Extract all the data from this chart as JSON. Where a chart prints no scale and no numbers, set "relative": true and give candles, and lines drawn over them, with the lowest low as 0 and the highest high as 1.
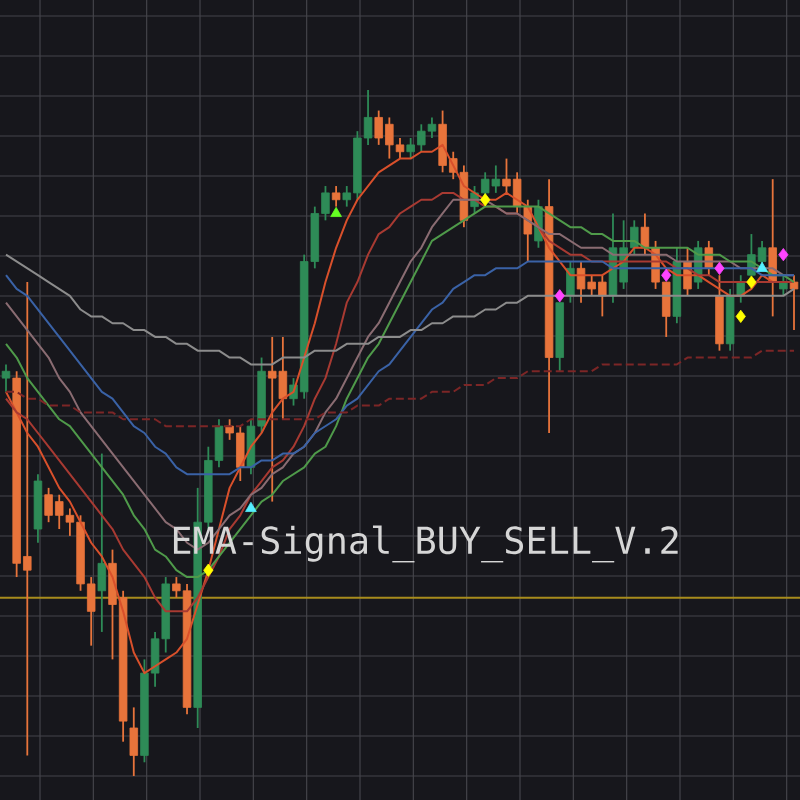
{
  "chart_data": {
    "type": "candlestick",
    "relative": true,
    "grid": true,
    "categories": [
      null,
      null,
      null,
      null,
      null,
      null,
      null,
      null,
      null,
      null,
      null,
      null,
      null,
      null,
      null,
      null,
      null,
      null,
      null,
      null,
      null,
      null,
      null,
      null,
      null,
      null,
      null,
      null,
      null,
      null,
      null,
      null,
      null,
      null,
      null,
      null,
      null,
      null,
      null,
      null,
      null,
      null,
      null,
      null,
      null,
      null,
      null,
      null,
      null,
      null,
      null,
      null,
      null,
      null,
      null,
      null,
      null,
      null,
      null,
      null,
      null,
      null,
      null,
      null,
      null,
      null,
      null,
      null,
      null,
      null,
      null,
      null,
      null,
      null,
      null
    ],
    "ohlc": [
      [
        0.58,
        0.6,
        0.56,
        0.59
      ],
      [
        0.58,
        0.59,
        0.29,
        0.31
      ],
      [
        0.32,
        0.72,
        0.03,
        0.3
      ],
      [
        0.36,
        0.44,
        0.34,
        0.43
      ],
      [
        0.41,
        0.42,
        0.37,
        0.38
      ],
      [
        0.4,
        0.41,
        0.36,
        0.38
      ],
      [
        0.38,
        0.39,
        0.35,
        0.37
      ],
      [
        0.37,
        0.38,
        0.27,
        0.28
      ],
      [
        0.28,
        0.29,
        0.19,
        0.24
      ],
      [
        0.27,
        0.47,
        0.21,
        0.31
      ],
      [
        0.31,
        0.33,
        0.17,
        0.25
      ],
      [
        0.26,
        0.27,
        0.05,
        0.08
      ],
      [
        0.07,
        0.1,
        0,
        0.03
      ],
      [
        0.03,
        0.17,
        0.02,
        0.15
      ],
      [
        0.15,
        0.21,
        0.13,
        0.2
      ],
      [
        0.2,
        0.29,
        0.18,
        0.28
      ],
      [
        0.28,
        0.29,
        0.26,
        0.27
      ],
      [
        0.27,
        0.28,
        0.09,
        0.1
      ],
      [
        0.1,
        0.42,
        0.07,
        0.37
      ],
      [
        0.37,
        0.48,
        0.36,
        0.46
      ],
      [
        0.46,
        0.52,
        0.45,
        0.51
      ],
      [
        0.51,
        0.52,
        0.49,
        0.5
      ],
      [
        0.5,
        0.51,
        0.43,
        0.45
      ],
      [
        0.45,
        0.52,
        0.44,
        0.51
      ],
      [
        0.51,
        0.61,
        0.5,
        0.59
      ],
      [
        0.59,
        0.64,
        0.4,
        0.58
      ],
      [
        0.59,
        0.64,
        0.52,
        0.55
      ],
      [
        0.55,
        0.58,
        0.54,
        0.57
      ],
      [
        0.56,
        0.76,
        0.55,
        0.75
      ],
      [
        0.75,
        0.83,
        0.74,
        0.82
      ],
      [
        0.82,
        0.86,
        0.81,
        0.85
      ],
      [
        0.85,
        0.86,
        0.83,
        0.84
      ],
      [
        0.84,
        0.86,
        0.83,
        0.85
      ],
      [
        0.85,
        0.94,
        0.84,
        0.93
      ],
      [
        0.93,
        1,
        0.92,
        0.96
      ],
      [
        0.96,
        0.97,
        0.92,
        0.93
      ],
      [
        0.95,
        0.96,
        0.9,
        0.92
      ],
      [
        0.92,
        0.93,
        0.9,
        0.91
      ],
      [
        0.91,
        0.93,
        0.9,
        0.92
      ],
      [
        0.92,
        0.95,
        0.91,
        0.94
      ],
      [
        0.94,
        0.96,
        0.93,
        0.95
      ],
      [
        0.95,
        0.97,
        0.88,
        0.89
      ],
      [
        0.9,
        0.91,
        0.87,
        0.88
      ],
      [
        0.88,
        0.89,
        0.8,
        0.81
      ],
      [
        0.83,
        0.86,
        0.82,
        0.85
      ],
      [
        0.85,
        0.88,
        0.84,
        0.87
      ],
      [
        0.86,
        0.89,
        0.85,
        0.87
      ],
      [
        0.87,
        0.9,
        0.85,
        0.86
      ],
      [
        0.87,
        0.88,
        0.82,
        0.83
      ],
      [
        0.83,
        0.84,
        0.75,
        0.79
      ],
      [
        0.78,
        0.84,
        0.77,
        0.83
      ],
      [
        0.83,
        0.87,
        0.5,
        0.61
      ],
      [
        0.61,
        0.69,
        0.59,
        0.69
      ],
      [
        0.7,
        0.75,
        0.69,
        0.74
      ],
      [
        0.74,
        0.75,
        0.69,
        0.71
      ],
      [
        0.72,
        0.73,
        0.7,
        0.71
      ],
      [
        0.72,
        0.73,
        0.67,
        0.7
      ],
      [
        0.7,
        0.82,
        0.69,
        0.77
      ],
      [
        0.72,
        0.81,
        0.71,
        0.77
      ],
      [
        0.77,
        0.81,
        0.76,
        0.8
      ],
      [
        0.8,
        0.82,
        0.76,
        0.77
      ],
      [
        0.77,
        0.78,
        0.71,
        0.72
      ],
      [
        0.72,
        0.72,
        0.64,
        0.67
      ],
      [
        0.67,
        0.77,
        0.66,
        0.75
      ],
      [
        0.75,
        0.77,
        0.7,
        0.71
      ],
      [
        0.72,
        0.78,
        0.71,
        0.77
      ],
      [
        0.77,
        0.78,
        0.73,
        0.74
      ],
      [
        0.7,
        0.73,
        0.62,
        0.63
      ],
      [
        0.63,
        0.71,
        0.62,
        0.7
      ],
      [
        0.7,
        0.73,
        0.69,
        0.72
      ],
      [
        0.73,
        0.79,
        0.73,
        0.76
      ],
      [
        0.75,
        0.78,
        0.74,
        0.77
      ],
      [
        0.77,
        0.87,
        0.67,
        0.72
      ],
      [
        0.71,
        0.73,
        0.7,
        0.72
      ],
      [
        0.72,
        0.73,
        0.65,
        0.71
      ]
    ],
    "colors": [
      "#2e8b57",
      "#e8743b",
      "#e8743b",
      "#2e8b57",
      "#e8743b",
      "#e8743b",
      "#e8743b",
      "#e8743b",
      "#e8743b",
      "#2e8b57",
      "#e8743b",
      "#e8743b",
      "#e8743b",
      "#2e8b57",
      "#2e8b57",
      "#2e8b57",
      "#e8743b",
      "#e8743b",
      "#2e8b57",
      "#2e8b57",
      "#2e8b57",
      "#e8743b",
      "#e8743b",
      "#2e8b57",
      "#2e8b57",
      "#e8743b",
      "#e8743b",
      "#2e8b57",
      "#2e8b57",
      "#2e8b57",
      "#2e8b57",
      "#e8743b",
      "#2e8b57",
      "#2e8b57",
      "#2e8b57",
      "#e8743b",
      "#e8743b",
      "#e8743b",
      "#2e8b57",
      "#2e8b57",
      "#2e8b57",
      "#e8743b",
      "#e8743b",
      "#e8743b",
      "#2e8b57",
      "#2e8b57",
      "#2e8b57",
      "#e8743b",
      "#e8743b",
      "#e8743b",
      "#2e8b57",
      "#e8743b",
      "#2e8b57",
      "#2e8b57",
      "#e8743b",
      "#e8743b",
      "#e8743b",
      "#2e8b57",
      "#2e8b57",
      "#2e8b57",
      "#e8743b",
      "#e8743b",
      "#e8743b",
      "#2e8b57",
      "#e8743b",
      "#2e8b57",
      "#e8743b",
      "#e8743b",
      "#2e8b57",
      "#2e8b57",
      "#2e8b57",
      "#2e8b57",
      "#e8743b",
      "#2e8b57",
      "#e8743b"
    ],
    "series": [
      {
        "type": "line",
        "color": "#d9502b",
        "values": [
          0.56,
          0.53,
          0.5,
          0.48,
          0.45,
          0.42,
          0.4,
          0.37,
          0.34,
          0.32,
          0.29,
          0.24,
          0.18,
          0.15,
          0.16,
          0.17,
          0.18,
          0.2,
          0.25,
          0.3,
          0.36,
          0.42,
          0.45,
          0.48,
          0.5,
          0.53,
          0.55,
          0.56,
          0.61,
          0.66,
          0.72,
          0.77,
          0.81,
          0.84,
          0.86,
          0.88,
          0.89,
          0.9,
          0.9,
          0.91,
          0.91,
          0.92,
          0.89,
          0.86,
          0.85,
          0.84,
          0.84,
          0.85,
          0.84,
          0.83,
          0.8,
          0.77,
          0.75,
          0.73,
          0.73,
          0.73,
          0.73,
          0.74,
          0.75,
          0.77,
          0.77,
          0.76,
          0.74,
          0.73,
          0.73,
          0.73,
          0.72,
          0.71,
          0.7,
          0.7,
          0.71,
          0.73,
          0.72,
          0.72,
          0.72
        ]
      },
      {
        "type": "line",
        "color": "#a83a32",
        "values": [
          0.55,
          0.53,
          0.52,
          0.5,
          0.48,
          0.46,
          0.44,
          0.42,
          0.4,
          0.38,
          0.36,
          0.33,
          0.31,
          0.29,
          0.26,
          0.24,
          0.24,
          0.24,
          0.26,
          0.29,
          0.32,
          0.36,
          0.38,
          0.41,
          0.43,
          0.45,
          0.46,
          0.48,
          0.51,
          0.55,
          0.58,
          0.63,
          0.69,
          0.72,
          0.76,
          0.79,
          0.8,
          0.82,
          0.83,
          0.84,
          0.84,
          0.85,
          0.85,
          0.84,
          0.84,
          0.83,
          0.83,
          0.82,
          0.82,
          0.81,
          0.8,
          0.78,
          0.77,
          0.76,
          0.76,
          0.75,
          0.75,
          0.75,
          0.75,
          0.75,
          0.75,
          0.75,
          0.75,
          0.74,
          0.74,
          0.73,
          0.73,
          0.72,
          0.72,
          0.72,
          0.72,
          0.72,
          0.72,
          0.72,
          0.72
        ]
      },
      {
        "type": "line",
        "color": "#8a6c72",
        "values": [
          0.69,
          0.67,
          0.65,
          0.63,
          0.61,
          0.58,
          0.56,
          0.53,
          0.51,
          0.49,
          0.47,
          0.45,
          0.43,
          0.41,
          0.39,
          0.37,
          0.36,
          0.34,
          0.33,
          0.34,
          0.36,
          0.38,
          0.39,
          0.41,
          0.42,
          0.44,
          0.45,
          0.47,
          0.48,
          0.5,
          0.53,
          0.55,
          0.58,
          0.61,
          0.64,
          0.66,
          0.69,
          0.72,
          0.75,
          0.77,
          0.8,
          0.82,
          0.84,
          0.84,
          0.84,
          0.84,
          0.83,
          0.82,
          0.82,
          0.81,
          0.8,
          0.79,
          0.79,
          0.78,
          0.77,
          0.77,
          0.77,
          0.76,
          0.76,
          0.76,
          0.76,
          0.76,
          0.76,
          0.75,
          0.75,
          0.75,
          0.75,
          0.75,
          0.75,
          0.74,
          0.74,
          0.74,
          0.74,
          0.73,
          0.73
        ]
      },
      {
        "type": "line",
        "color": "#4f9a4a",
        "values": [
          0.63,
          0.61,
          0.58,
          0.56,
          0.54,
          0.52,
          0.51,
          0.49,
          0.47,
          0.45,
          0.43,
          0.41,
          0.38,
          0.36,
          0.33,
          0.32,
          0.3,
          0.29,
          0.29,
          0.3,
          0.32,
          0.34,
          0.36,
          0.38,
          0.4,
          0.41,
          0.43,
          0.44,
          0.45,
          0.47,
          0.48,
          0.51,
          0.55,
          0.58,
          0.61,
          0.63,
          0.66,
          0.69,
          0.72,
          0.75,
          0.78,
          0.79,
          0.8,
          0.81,
          0.82,
          0.83,
          0.83,
          0.83,
          0.83,
          0.83,
          0.83,
          0.82,
          0.81,
          0.8,
          0.8,
          0.79,
          0.79,
          0.78,
          0.78,
          0.78,
          0.77,
          0.77,
          0.77,
          0.77,
          0.77,
          0.76,
          0.76,
          0.76,
          0.75,
          0.75,
          0.75,
          0.74,
          0.73,
          0.73,
          0.72
        ]
      },
      {
        "type": "line",
        "color": "#3a62a6",
        "values": [
          0.73,
          0.71,
          0.7,
          0.68,
          0.66,
          0.64,
          0.62,
          0.6,
          0.58,
          0.56,
          0.55,
          0.53,
          0.51,
          0.5,
          0.48,
          0.47,
          0.45,
          0.44,
          0.44,
          0.44,
          0.44,
          0.44,
          0.45,
          0.45,
          0.46,
          0.46,
          0.47,
          0.47,
          0.48,
          0.5,
          0.51,
          0.52,
          0.54,
          0.55,
          0.57,
          0.59,
          0.6,
          0.62,
          0.64,
          0.66,
          0.68,
          0.69,
          0.71,
          0.72,
          0.73,
          0.73,
          0.74,
          0.74,
          0.74,
          0.75,
          0.75,
          0.75,
          0.75,
          0.75,
          0.75,
          0.75,
          0.75,
          0.74,
          0.74,
          0.74,
          0.74,
          0.74,
          0.74,
          0.74,
          0.74,
          0.74,
          0.74,
          0.74,
          0.74,
          0.74,
          0.74,
          0.73,
          0.73,
          0.73,
          0.73
        ]
      },
      {
        "type": "line",
        "color": "#8c8c8c",
        "values": [
          0.76,
          0.75,
          0.74,
          0.73,
          0.72,
          0.71,
          0.7,
          0.68,
          0.67,
          0.67,
          0.66,
          0.66,
          0.65,
          0.65,
          0.64,
          0.64,
          0.63,
          0.63,
          0.62,
          0.62,
          0.62,
          0.61,
          0.61,
          0.6,
          0.6,
          0.6,
          0.61,
          0.61,
          0.61,
          0.62,
          0.62,
          0.62,
          0.63,
          0.63,
          0.63,
          0.64,
          0.64,
          0.64,
          0.65,
          0.65,
          0.66,
          0.66,
          0.67,
          0.67,
          0.67,
          0.68,
          0.68,
          0.69,
          0.69,
          0.7,
          0.7,
          0.7,
          0.7,
          0.7,
          0.7,
          0.7,
          0.7,
          0.7,
          0.7,
          0.7,
          0.7,
          0.7,
          0.7,
          0.7,
          0.7,
          0.7,
          0.7,
          0.7,
          0.7,
          0.7,
          0.7,
          0.7,
          0.7,
          0.7,
          0.71
        ]
      },
      {
        "type": "line",
        "color": "#7c2626",
        "line_style": "dashed",
        "values": [
          0.56,
          0.56,
          0.55,
          0.55,
          0.54,
          0.54,
          0.54,
          0.53,
          0.53,
          0.53,
          0.53,
          0.52,
          0.52,
          0.52,
          0.52,
          0.51,
          0.51,
          0.51,
          0.51,
          0.51,
          0.51,
          0.51,
          0.51,
          0.52,
          0.52,
          0.52,
          0.52,
          0.52,
          0.52,
          0.52,
          0.53,
          0.53,
          0.53,
          0.54,
          0.54,
          0.54,
          0.55,
          0.55,
          0.55,
          0.55,
          0.56,
          0.56,
          0.56,
          0.57,
          0.57,
          0.57,
          0.58,
          0.58,
          0.58,
          0.59,
          0.59,
          0.59,
          0.59,
          0.59,
          0.59,
          0.59,
          0.6,
          0.6,
          0.6,
          0.6,
          0.6,
          0.6,
          0.6,
          0.6,
          0.61,
          0.61,
          0.61,
          0.61,
          0.61,
          0.61,
          0.61,
          0.62,
          0.62,
          0.62,
          0.62
        ]
      },
      {
        "type": "scatter",
        "color": "#ffff00",
        "marker": "diamond",
        "values": [
          null,
          null,
          null,
          null,
          null,
          null,
          null,
          null,
          null,
          null,
          null,
          null,
          null,
          null,
          null,
          null,
          null,
          null,
          null,
          0.3,
          null,
          null,
          null,
          null,
          null,
          null,
          null,
          null,
          null,
          null,
          null,
          null,
          null,
          null,
          null,
          null,
          null,
          null,
          null,
          null,
          null,
          null,
          null,
          null,
          null,
          0.84,
          null,
          null,
          null,
          null,
          null,
          null,
          null,
          null,
          null,
          null,
          null,
          null,
          null,
          null,
          null,
          null,
          null,
          null,
          null,
          null,
          null,
          null,
          null,
          0.67,
          0.72,
          null,
          null,
          null,
          null
        ]
      },
      {
        "type": "scatter",
        "color": "#55f0ff",
        "marker": "triangle",
        "values": [
          null,
          null,
          null,
          null,
          null,
          null,
          null,
          null,
          null,
          null,
          null,
          null,
          null,
          null,
          null,
          null,
          null,
          null,
          null,
          null,
          null,
          null,
          null,
          0.39,
          null,
          null,
          null,
          null,
          null,
          null,
          null,
          null,
          null,
          null,
          null,
          null,
          null,
          null,
          null,
          null,
          null,
          null,
          null,
          null,
          null,
          null,
          null,
          null,
          null,
          null,
          null,
          null,
          null,
          null,
          null,
          null,
          null,
          null,
          null,
          null,
          null,
          null,
          null,
          null,
          null,
          null,
          null,
          null,
          null,
          null,
          null,
          0.74,
          null,
          null,
          null
        ]
      },
      {
        "type": "scatter",
        "color": "#66ff22",
        "marker": "triangle",
        "values": [
          null,
          null,
          null,
          null,
          null,
          null,
          null,
          null,
          null,
          null,
          null,
          null,
          null,
          null,
          null,
          null,
          null,
          null,
          null,
          null,
          null,
          null,
          null,
          null,
          null,
          null,
          null,
          null,
          null,
          null,
          null,
          0.82,
          null,
          null,
          null,
          null,
          null,
          null,
          null,
          null,
          null,
          null,
          null,
          null,
          null,
          null,
          null,
          null,
          null,
          null,
          null,
          null,
          null,
          null,
          null,
          null,
          null,
          null,
          null,
          null,
          null,
          null,
          null,
          null,
          null,
          null,
          null,
          null,
          null,
          null,
          null,
          null,
          null,
          null,
          null
        ]
      },
      {
        "type": "scatter",
        "color": "#ff44ff",
        "marker": "diamond",
        "values": [
          null,
          null,
          null,
          null,
          null,
          null,
          null,
          null,
          null,
          null,
          null,
          null,
          null,
          null,
          null,
          null,
          null,
          null,
          null,
          null,
          null,
          null,
          null,
          null,
          null,
          null,
          null,
          null,
          null,
          null,
          null,
          null,
          null,
          null,
          null,
          null,
          null,
          null,
          null,
          null,
          null,
          null,
          null,
          null,
          null,
          null,
          null,
          null,
          null,
          null,
          null,
          null,
          0.7,
          null,
          null,
          null,
          null,
          null,
          null,
          null,
          null,
          null,
          0.73,
          null,
          null,
          null,
          null,
          0.74,
          null,
          null,
          null,
          null,
          null,
          0.76,
          null
        ]
      }
    ],
    "ref_lines": [
      {
        "axis": "y",
        "value": 0.26,
        "color": "#a88c1c"
      }
    ],
    "annotations": [
      "EMA-Signal_BUY_SELL_V.2"
    ]
  }
}
